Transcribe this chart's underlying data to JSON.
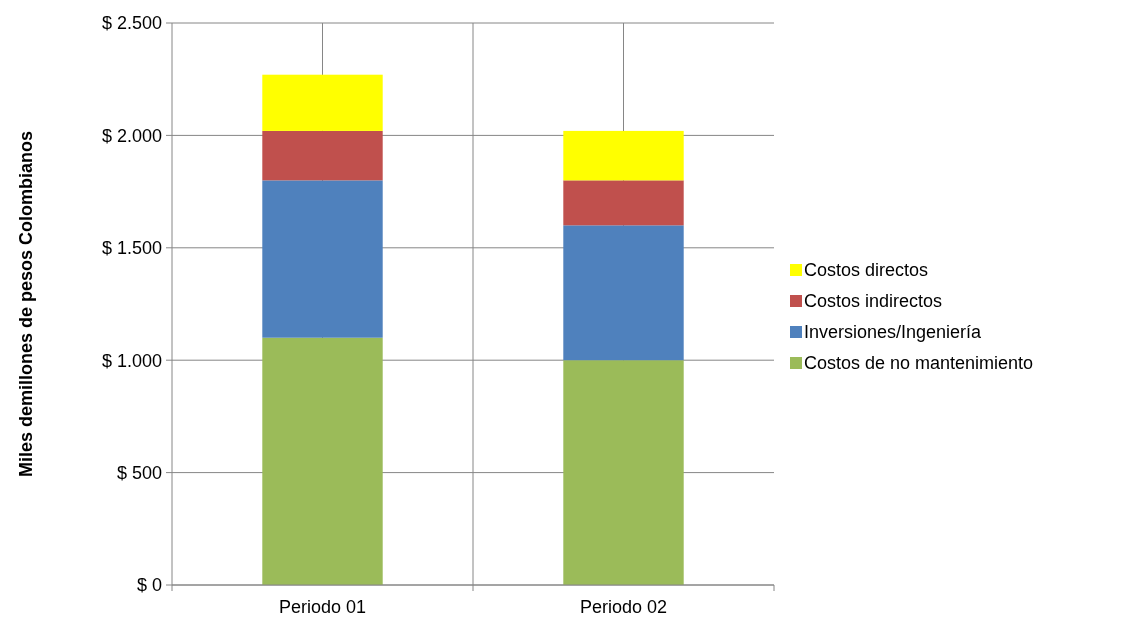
{
  "chart_data": {
    "type": "bar",
    "stacked": true,
    "ylabel": "Miles demillones de pesos Colombianos",
    "categories": [
      "Periodo 01",
      "Periodo 02"
    ],
    "series": [
      {
        "name": "Costos de no mantenimiento",
        "color": "#9bbb59",
        "values": [
          1100,
          1000
        ]
      },
      {
        "name": "Inversiones/Ingeniería",
        "color": "#4f81bd",
        "values": [
          700,
          600
        ]
      },
      {
        "name": "Costos indirectos",
        "color": "#c0504d",
        "values": [
          220,
          200
        ]
      },
      {
        "name": "Costos directos",
        "color": "#ffff00",
        "values": [
          250,
          220
        ]
      }
    ],
    "ylim": [
      0,
      2500
    ],
    "yticks": [
      {
        "value": 0,
        "label": "$ 0"
      },
      {
        "value": 500,
        "label": "$ 500"
      },
      {
        "value": 1000,
        "label": "$ 1.000"
      },
      {
        "value": 1500,
        "label": "$ 1.500"
      },
      {
        "value": 2000,
        "label": "$ 2.000"
      },
      {
        "value": 2500,
        "label": "$ 2.500"
      }
    ],
    "grid": true,
    "legend": "right"
  }
}
